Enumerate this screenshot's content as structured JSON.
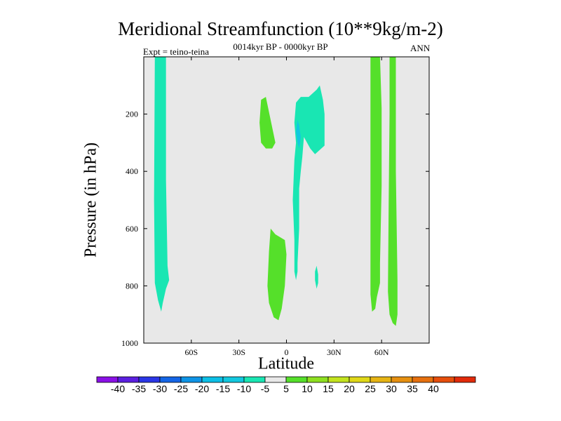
{
  "chart_data": {
    "type": "contour",
    "title": "Meridional Streamfunction (10**9kg/m-2)",
    "subtitle": "0014kyr BP - 0000kyr BP",
    "left_label": "Expt = teino-teina",
    "right_label": "ANN",
    "xlabel": "Latitude",
    "ylabel": "Pressure (in hPa)",
    "xlim": [
      -90,
      90
    ],
    "ylim": [
      1000,
      0
    ],
    "x_ticks": [
      {
        "value": -60,
        "label": "60S"
      },
      {
        "value": -30,
        "label": "30S"
      },
      {
        "value": 0,
        "label": "0"
      },
      {
        "value": 30,
        "label": "30N"
      },
      {
        "value": 60,
        "label": "60N"
      }
    ],
    "y_ticks": [
      {
        "value": 200,
        "label": "200"
      },
      {
        "value": 400,
        "label": "400"
      },
      {
        "value": 600,
        "label": "600"
      },
      {
        "value": 800,
        "label": "800"
      },
      {
        "value": 1000,
        "label": "1000"
      }
    ],
    "background_color": "#e8e8e8",
    "regions": [
      {
        "name": "sh-polar-negative-cell",
        "level": "-10 to -5",
        "color": "#19e6b3",
        "points": [
          [
            -83,
            0
          ],
          [
            -76,
            0
          ],
          [
            -76,
            430
          ],
          [
            -75,
            730
          ],
          [
            -74,
            780
          ],
          [
            -76,
            810
          ],
          [
            -78,
            860
          ],
          [
            -79,
            890
          ],
          [
            -81,
            850
          ],
          [
            -83,
            790
          ],
          [
            -83.5,
            500
          ]
        ]
      },
      {
        "name": "upper-tropical-positive-cell",
        "level": "5 to 10",
        "color": "#55e02a",
        "points": [
          [
            -16,
            150
          ],
          [
            -13,
            140
          ],
          [
            -10,
            220
          ],
          [
            -7,
            300
          ],
          [
            -9,
            320
          ],
          [
            -13,
            320
          ],
          [
            -16,
            300
          ],
          [
            -17,
            230
          ]
        ]
      },
      {
        "name": "lower-tropical-positive-cell",
        "level": "5 to 10",
        "color": "#55e02a",
        "points": [
          [
            -10,
            600
          ],
          [
            -7,
            620
          ],
          [
            -1,
            640
          ],
          [
            0,
            690
          ],
          [
            -1,
            800
          ],
          [
            -3,
            880
          ],
          [
            -5,
            920
          ],
          [
            -8,
            910
          ],
          [
            -11,
            860
          ],
          [
            -12,
            800
          ],
          [
            -11,
            680
          ]
        ]
      },
      {
        "name": "equatorial-negative-cell",
        "level": "-10 to -5",
        "color": "#19e6b3",
        "points": [
          [
            6,
            160
          ],
          [
            9,
            140
          ],
          [
            14,
            140
          ],
          [
            19,
            115
          ],
          [
            21,
            100
          ],
          [
            23,
            150
          ],
          [
            24,
            200
          ],
          [
            24,
            310
          ],
          [
            21,
            325
          ],
          [
            18,
            340
          ],
          [
            15,
            320
          ],
          [
            11,
            280
          ],
          [
            10,
            350
          ],
          [
            9,
            400
          ],
          [
            8,
            460
          ],
          [
            8,
            600
          ],
          [
            7,
            720
          ],
          [
            7,
            750
          ],
          [
            6,
            780
          ],
          [
            5,
            750
          ],
          [
            5,
            640
          ],
          [
            4,
            500
          ],
          [
            5,
            360
          ],
          [
            6,
            300
          ],
          [
            5,
            230
          ]
        ]
      },
      {
        "name": "equatorial-core-negative",
        "level": "-15 to -10",
        "color": "#12c8df",
        "points": [
          [
            7,
            220
          ],
          [
            8,
            240
          ],
          [
            9,
            280
          ],
          [
            8,
            320
          ],
          [
            7,
            300
          ],
          [
            6,
            260
          ]
        ]
      },
      {
        "name": "small-negative-patch",
        "level": "-10 to -5",
        "color": "#19e6b3",
        "points": [
          [
            19,
            730
          ],
          [
            20,
            760
          ],
          [
            20,
            790
          ],
          [
            19,
            810
          ],
          [
            18,
            780
          ],
          [
            18,
            750
          ]
        ]
      },
      {
        "name": "nh-positive-cell-1",
        "level": "5 to 10",
        "color": "#55e02a",
        "points": [
          [
            53,
            0
          ],
          [
            59,
            0
          ],
          [
            60,
            180
          ],
          [
            60,
            450
          ],
          [
            59,
            720
          ],
          [
            59,
            790
          ],
          [
            57,
            840
          ],
          [
            56,
            880
          ],
          [
            54,
            890
          ],
          [
            53,
            830
          ],
          [
            53,
            500
          ]
        ]
      },
      {
        "name": "nh-positive-cell-2",
        "level": "5 to 10",
        "color": "#55e02a",
        "points": [
          [
            65,
            0
          ],
          [
            69,
            0
          ],
          [
            69,
            400
          ],
          [
            70,
            780
          ],
          [
            70,
            900
          ],
          [
            69,
            940
          ],
          [
            67,
            930
          ],
          [
            65,
            900
          ],
          [
            64,
            820
          ],
          [
            64.5,
            500
          ],
          [
            65,
            200
          ]
        ]
      }
    ],
    "colorbar": {
      "colors": [
        "#8a10e6",
        "#5b1fe0",
        "#2a36e6",
        "#1465e6",
        "#0e94e6",
        "#0cbfe6",
        "#12c8df",
        "#19e6b3",
        "#e8e8e8",
        "#55e02a",
        "#8ee020",
        "#c3e31e",
        "#e0d818",
        "#e6b414",
        "#e69010",
        "#e6700e",
        "#e64e0c",
        "#e22a0a"
      ],
      "labels": [
        "-40",
        "-35",
        "-30",
        "-25",
        "-20",
        "-15",
        "-10",
        "-5",
        "5",
        "10",
        "15",
        "20",
        "25",
        "30",
        "35",
        "40"
      ]
    }
  }
}
